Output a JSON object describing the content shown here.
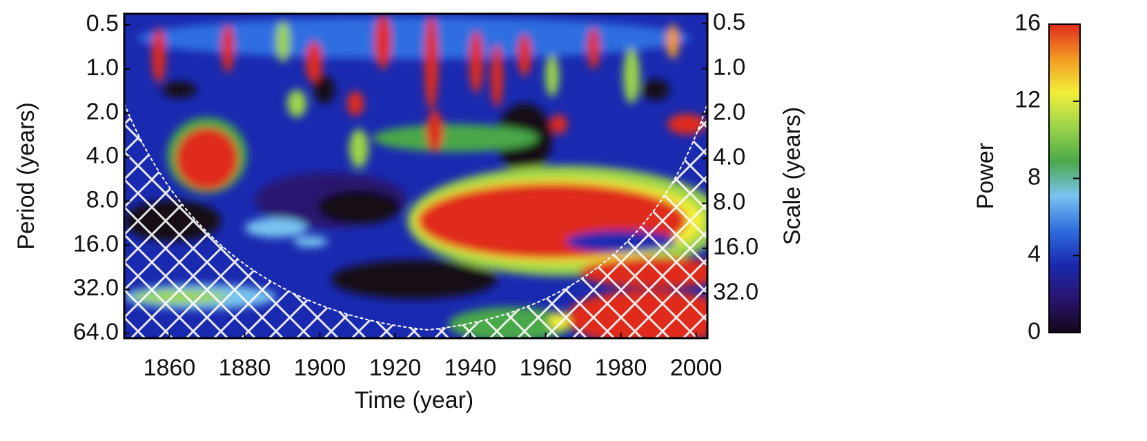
{
  "chart_data": {
    "type": "heatmap",
    "xlabel": "Time (year)",
    "ylabel": "Period (years)",
    "y2label": "Scale (years)",
    "xlim": [
      1848,
      2003
    ],
    "xticks": [
      1860,
      1880,
      1900,
      1920,
      1940,
      1960,
      1980,
      2000
    ],
    "ylim": [
      0.42,
      69
    ],
    "y_log": true,
    "y_reversed": true,
    "yticks": [
      0.5,
      {
        "value": 1,
        "label": "1.0"
      },
      {
        "value": 2,
        "label": "2.0"
      },
      {
        "value": 4,
        "label": "4.0"
      },
      {
        "value": 8,
        "label": "8.0"
      },
      {
        "value": 16,
        "label": "16.0"
      },
      {
        "value": 32,
        "label": "32.0"
      },
      {
        "value": 64,
        "label": "64.0"
      }
    ],
    "y2lim": [
      0.43,
      64
    ],
    "y2ticks": [
      0.5,
      {
        "value": 1,
        "label": "1.0"
      },
      {
        "value": 2,
        "label": "2.0"
      },
      {
        "value": 4,
        "label": "4.0"
      },
      {
        "value": 8,
        "label": "8.0"
      },
      {
        "value": 16,
        "label": "16.0"
      },
      {
        "value": 32,
        "label": "32.0"
      }
    ],
    "colorbar": {
      "label": "Power",
      "lim": [
        0,
        16
      ],
      "ticks": [
        0,
        4,
        8,
        12,
        16
      ],
      "colors": [
        "#120818",
        "#2a1470",
        "#1a2ab0",
        "#2f6ee0",
        "#78c4f0",
        "#4aa84a",
        "#9cd44a",
        "#f2ee3a",
        "#f29a22",
        "#e02a1e"
      ]
    }
  }
}
